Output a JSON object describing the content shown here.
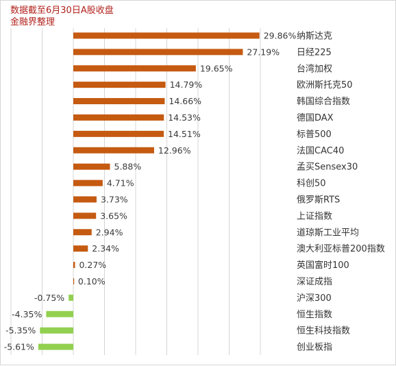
{
  "notes": [
    "数据截至6月30日A股收盘",
    "金融界整理"
  ],
  "colors": {
    "positive": "#c55a11",
    "negative": "#92d050",
    "grid": "#d4d4d4"
  },
  "chart_data": {
    "type": "bar",
    "orientation": "horizontal",
    "unit": "%",
    "xlim": [
      -6,
      30
    ],
    "grid": true,
    "categories": [
      "纳斯达克",
      "日经225",
      "台湾加权",
      "欧洲斯托克50",
      "韩国综合指数",
      "德国DAX",
      "标普500",
      "法国CAC40",
      "孟买Sensex30",
      "科创50",
      "俄罗斯RTS",
      "上证指数",
      "道琼斯工业平均",
      "澳大利亚标普200指数",
      "英国富时100",
      "深证成指",
      "沪深300",
      "恒生指数",
      "恒生科技指数",
      "创业板指"
    ],
    "values": [
      29.86,
      27.19,
      19.65,
      14.79,
      14.66,
      14.53,
      14.51,
      12.96,
      5.88,
      4.71,
      3.73,
      3.65,
      2.94,
      2.34,
      0.27,
      0.1,
      -0.75,
      -4.35,
      -5.35,
      -5.61
    ],
    "value_labels": [
      "29.86%",
      "27.19%",
      "19.65%",
      "14.79%",
      "14.66%",
      "14.53%",
      "14.51%",
      "12.96%",
      "5.88%",
      "4.71%",
      "3.73%",
      "3.65%",
      "2.94%",
      "2.34%",
      "0.27%",
      "0.10%",
      "-0.75%",
      "-4.35%",
      "-5.35%",
      "-5.61%"
    ]
  }
}
